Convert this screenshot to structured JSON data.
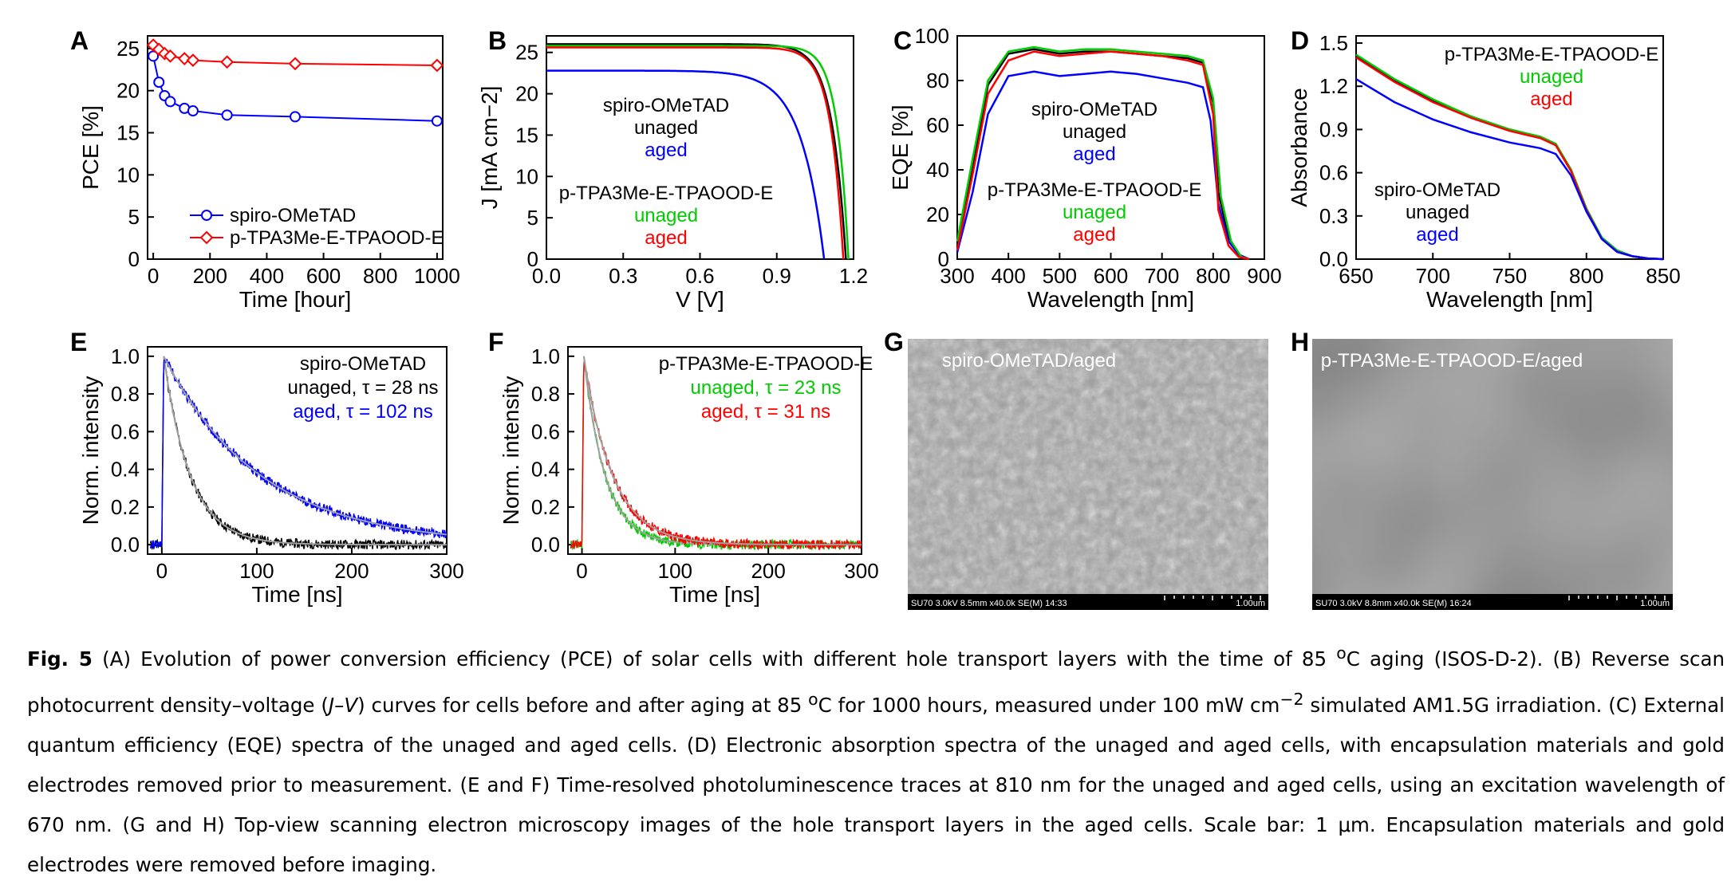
{
  "colors": {
    "blue": "#0000ff",
    "red": "#ff0000",
    "green": "#00cc00",
    "black": "#000000",
    "gray": "#a0a0a0"
  },
  "panels": {
    "A": "A",
    "B": "B",
    "C": "C",
    "D": "D",
    "E": "E",
    "F": "F",
    "G": "G",
    "H": "H"
  },
  "chart_data": [
    {
      "panel": "A",
      "type": "line",
      "xlabel": "Time [hour]",
      "ylabel": "PCE [%]",
      "xlim": [
        -20,
        1020
      ],
      "ylim": [
        0,
        26.5
      ],
      "xticks": [
        0,
        200,
        400,
        600,
        800,
        1000
      ],
      "yticks": [
        0,
        5,
        10,
        15,
        20,
        25
      ],
      "legend": [
        "spiro-OMeTAD",
        "p-TPA3Me-E-TPAOOD-E"
      ],
      "legend_position": "bottom-center",
      "series": [
        {
          "name": "spiro-OMeTAD",
          "color": "blue",
          "marker": "circle",
          "x": [
            0,
            20,
            40,
            60,
            110,
            140,
            260,
            500,
            1000
          ],
          "y": [
            24.1,
            21,
            19.4,
            18.7,
            17.9,
            17.6,
            17.1,
            16.9,
            16.4
          ]
        },
        {
          "name": "p-TPA3Me-E-TPAOOD-E",
          "color": "red",
          "marker": "diamond",
          "x": [
            0,
            20,
            40,
            60,
            110,
            140,
            260,
            500,
            1000
          ],
          "y": [
            25.4,
            24.9,
            24.4,
            24.1,
            23.8,
            23.6,
            23.4,
            23.2,
            23.0
          ]
        }
      ]
    },
    {
      "panel": "B",
      "type": "line",
      "xlabel": "V [V]",
      "ylabel": "J [mA cm−2]",
      "xlim": [
        0,
        1.2
      ],
      "ylim": [
        0,
        27
      ],
      "xticks": [
        "0.0",
        "0.3",
        "0.6",
        "0.9",
        "1.2"
      ],
      "yticks": [
        0,
        5,
        10,
        15,
        20,
        25
      ],
      "annotations": [
        {
          "text": "spiro-OMeTAD",
          "color": "black"
        },
        {
          "text": "unaged",
          "color": "black"
        },
        {
          "text": "aged",
          "color": "blue"
        },
        {
          "text": "p-TPA3Me-E-TPAOOD-E",
          "color": "black"
        },
        {
          "text": "unaged",
          "color": "green"
        },
        {
          "text": "aged",
          "color": "red"
        }
      ],
      "series": [
        {
          "name": "spiro-OMeTAD unaged",
          "color": "black",
          "jsc": 26.0,
          "voc": 1.17,
          "n": 0.055
        },
        {
          "name": "spiro-OMeTAD aged",
          "color": "blue",
          "jsc": 22.8,
          "voc": 1.085,
          "n": 0.09
        },
        {
          "name": "p-TPA3Me-E-TPAOOD-E unaged",
          "color": "green",
          "jsc": 25.8,
          "voc": 1.18,
          "n": 0.045
        },
        {
          "name": "p-TPA3Me-E-TPAOOD-E aged",
          "color": "red",
          "jsc": 25.6,
          "voc": 1.16,
          "n": 0.05
        }
      ]
    },
    {
      "panel": "C",
      "type": "line",
      "xlabel": "Wavelength [nm]",
      "ylabel": "EQE [%]",
      "xlim": [
        300,
        900
      ],
      "ylim": [
        0,
        100
      ],
      "xticks": [
        300,
        400,
        500,
        600,
        700,
        800,
        900
      ],
      "yticks": [
        0,
        20,
        40,
        60,
        80,
        100
      ],
      "annotations": [
        {
          "text": "spiro-OMeTAD",
          "color": "black"
        },
        {
          "text": "unaged",
          "color": "black"
        },
        {
          "text": "aged",
          "color": "blue"
        },
        {
          "text": "p-TPA3Me-E-TPAOOD-E",
          "color": "black"
        },
        {
          "text": "unaged",
          "color": "green"
        },
        {
          "text": "aged",
          "color": "red"
        }
      ],
      "series": [
        {
          "name": "spiro unaged",
          "color": "black",
          "x": [
            300,
            330,
            360,
            400,
            450,
            500,
            550,
            600,
            650,
            700,
            750,
            780,
            800,
            810,
            830,
            850,
            870
          ],
          "y": [
            5,
            40,
            78,
            92,
            94,
            92,
            93,
            93,
            92,
            91,
            90,
            88,
            70,
            30,
            10,
            2,
            0
          ]
        },
        {
          "name": "spiro aged",
          "color": "blue",
          "x": [
            300,
            330,
            360,
            400,
            450,
            500,
            550,
            600,
            650,
            700,
            750,
            780,
            795,
            810,
            830,
            850,
            870
          ],
          "y": [
            3,
            30,
            65,
            82,
            84,
            82,
            83,
            84,
            83,
            81,
            79,
            77,
            62,
            25,
            8,
            2,
            0
          ]
        },
        {
          "name": "p-TPA3Me-E-TPAOOD-E unaged",
          "color": "green",
          "x": [
            300,
            330,
            360,
            400,
            450,
            500,
            550,
            600,
            650,
            700,
            750,
            780,
            800,
            815,
            835,
            855,
            870
          ],
          "y": [
            8,
            45,
            80,
            93,
            95,
            93,
            94,
            94,
            93,
            92,
            91,
            89,
            72,
            28,
            8,
            1,
            0
          ]
        },
        {
          "name": "p-TPA3Me-E-TPAOOD-E aged",
          "color": "red",
          "x": [
            300,
            330,
            360,
            400,
            450,
            500,
            550,
            600,
            650,
            700,
            750,
            780,
            800,
            810,
            830,
            850,
            870
          ],
          "y": [
            4,
            38,
            74,
            89,
            93,
            91,
            92,
            93,
            92,
            91,
            89,
            87,
            65,
            22,
            6,
            1,
            0
          ]
        }
      ]
    },
    {
      "panel": "D",
      "type": "line",
      "xlabel": "Wavelength [nm]",
      "ylabel": "Absorbance",
      "xlim": [
        650,
        850
      ],
      "ylim": [
        0,
        1.55
      ],
      "xticks": [
        650,
        700,
        750,
        800,
        850
      ],
      "yticks": [
        "0.0",
        "0.3",
        "0.6",
        "0.9",
        "1.2",
        "1.5"
      ],
      "annotations": [
        {
          "text": "p-TPA3Me-E-TPAOOD-E",
          "color": "black"
        },
        {
          "text": "unaged",
          "color": "green"
        },
        {
          "text": "aged",
          "color": "red"
        },
        {
          "text": "spiro-OMeTAD",
          "color": "black"
        },
        {
          "text": "unaged",
          "color": "black"
        },
        {
          "text": "aged",
          "color": "blue"
        }
      ],
      "series": [
        {
          "name": "unaged",
          "color": "black",
          "x": [
            650,
            675,
            700,
            725,
            750,
            770,
            780,
            790,
            800,
            810,
            820,
            830,
            840,
            850
          ],
          "y": [
            1.41,
            1.24,
            1.1,
            0.99,
            0.9,
            0.85,
            0.8,
            0.62,
            0.35,
            0.15,
            0.06,
            0.02,
            0.005,
            0
          ]
        },
        {
          "name": "p-TPA3Me-E-TPAOOD-E unaged",
          "color": "green",
          "x": [
            650,
            675,
            700,
            725,
            750,
            770,
            780,
            790,
            800,
            810,
            820,
            830,
            840,
            850
          ],
          "y": [
            1.42,
            1.25,
            1.11,
            0.99,
            0.9,
            0.85,
            0.8,
            0.62,
            0.35,
            0.15,
            0.06,
            0.02,
            0.005,
            0
          ]
        },
        {
          "name": "aged",
          "color": "red",
          "x": [
            650,
            675,
            700,
            725,
            750,
            770,
            780,
            790,
            800,
            810,
            820,
            830,
            840,
            850
          ],
          "y": [
            1.4,
            1.23,
            1.09,
            0.98,
            0.89,
            0.84,
            0.79,
            0.61,
            0.34,
            0.14,
            0.05,
            0.02,
            0.005,
            0
          ]
        },
        {
          "name": "spiro aged",
          "color": "blue",
          "x": [
            650,
            675,
            700,
            725,
            750,
            770,
            780,
            790,
            800,
            810,
            820,
            830,
            840,
            850
          ],
          "y": [
            1.25,
            1.09,
            0.97,
            0.88,
            0.81,
            0.77,
            0.73,
            0.58,
            0.33,
            0.14,
            0.05,
            0.02,
            0.005,
            0
          ]
        }
      ]
    },
    {
      "panel": "E",
      "type": "line",
      "xlabel": "Time [ns]",
      "ylabel": "Norm. intensity",
      "xlim": [
        -15,
        300
      ],
      "ylim": [
        -0.05,
        1.05
      ],
      "xticks": [
        0,
        100,
        200,
        300
      ],
      "yticks": [
        "0.0",
        "0.2",
        "0.4",
        "0.6",
        "0.8",
        "1.0"
      ],
      "annotations": [
        {
          "text": "spiro-OMeTAD",
          "color": "black"
        },
        {
          "text": "unaged, τ = 28 ns",
          "color": "black"
        },
        {
          "text": "aged, τ = 102 ns",
          "color": "blue"
        }
      ],
      "series": [
        {
          "name": "unaged",
          "color": "black",
          "tau": 28
        },
        {
          "name": "aged",
          "color": "blue",
          "tau": 102
        }
      ]
    },
    {
      "panel": "F",
      "type": "line",
      "xlabel": "Time [ns]",
      "ylabel": "Norm. intensity",
      "xlim": [
        -15,
        300
      ],
      "ylim": [
        -0.05,
        1.05
      ],
      "xticks": [
        0,
        100,
        200,
        300
      ],
      "yticks": [
        "0.0",
        "0.2",
        "0.4",
        "0.6",
        "0.8",
        "1.0"
      ],
      "annotations": [
        {
          "text": "p-TPA3Me-E-TPAOOD-E",
          "color": "black"
        },
        {
          "text": "unaged, τ = 23 ns",
          "color": "green"
        },
        {
          "text": "aged, τ = 31 ns",
          "color": "red"
        }
      ],
      "series": [
        {
          "name": "unaged",
          "color": "green",
          "tau": 23
        },
        {
          "name": "aged",
          "color": "red",
          "tau": 31
        }
      ]
    }
  ],
  "sem": {
    "G": {
      "label": "spiro-OMeTAD/aged",
      "info": "SU70 3.0kV 8.5mm x40.0k SE(M) 14:33",
      "scale": "1.00um"
    },
    "H": {
      "label": "p-TPA3Me-E-TPAOOD-E/aged",
      "info": "SU70 3.0kV 8.8mm x40.0k SE(M) 16:24",
      "scale": "1.00um"
    }
  },
  "caption": {
    "fig": "Fig. 5",
    "t1": " (A) Evolution of power conversion efficiency (PCE) of solar cells with different hole transport layers with the time of 85 ",
    "deg": "o",
    "t2": "C aging (ISOS-D-2). (B) Reverse scan photocurrent density–voltage (",
    "jv": "J–V",
    "t3": ") curves for cells before and after aging at 85 ",
    "t4": "C for 1000 hours, measured under 100 mW cm",
    "sup": "−2",
    "t5": " simulated AM1.5G irradiation. (C) External quantum efficiency (EQE) spectra of the unaged and aged cells. (D) Electronic absorption spectra of the unaged and aged cells, with encapsulation materials and gold electrodes removed prior to measurement. (E and F) Time-resolved photoluminescence traces at 810 nm for the unaged and aged cells, using an excitation wavelength of 670 nm. (G and H) Top-view scanning electron microscopy images of the hole transport layers in the aged cells. Scale bar: 1 μm. Encapsulation materials and gold electrodes were removed before imaging."
  }
}
